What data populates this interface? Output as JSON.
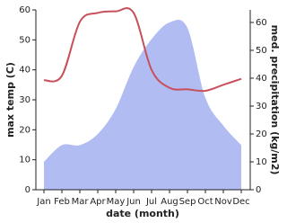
{
  "chart_data": {
    "type": "line",
    "categories": [
      "Jan",
      "Feb",
      "Mar",
      "Apr",
      "May",
      "Jun",
      "Jul",
      "Aug",
      "Sep",
      "Oct",
      "Nov",
      "Dec"
    ],
    "series": [
      {
        "name": "max temp",
        "type": "line",
        "color": "#c8505a",
        "values": [
          36.5,
          38,
          56,
          59,
          59.5,
          59,
          40,
          34,
          33.5,
          33,
          35,
          37
        ]
      },
      {
        "name": "med. precipitation",
        "type": "area",
        "axis": "y2",
        "color": "#b0bcf2",
        "values": [
          10,
          16,
          16,
          20,
          29,
          44,
          54,
          60,
          58,
          33,
          23,
          16
        ]
      }
    ],
    "ylabel": "max temp (C)",
    "y2label": "med. precipitation (kg/m2)",
    "xlabel": "date (month)",
    "ylim": [
      0,
      60
    ],
    "yticks": [
      0,
      10,
      20,
      30,
      40,
      50,
      60
    ],
    "y2lim": [
      0,
      64.5
    ],
    "y2ticks": [
      0,
      10,
      20,
      30,
      40,
      50,
      60
    ]
  }
}
